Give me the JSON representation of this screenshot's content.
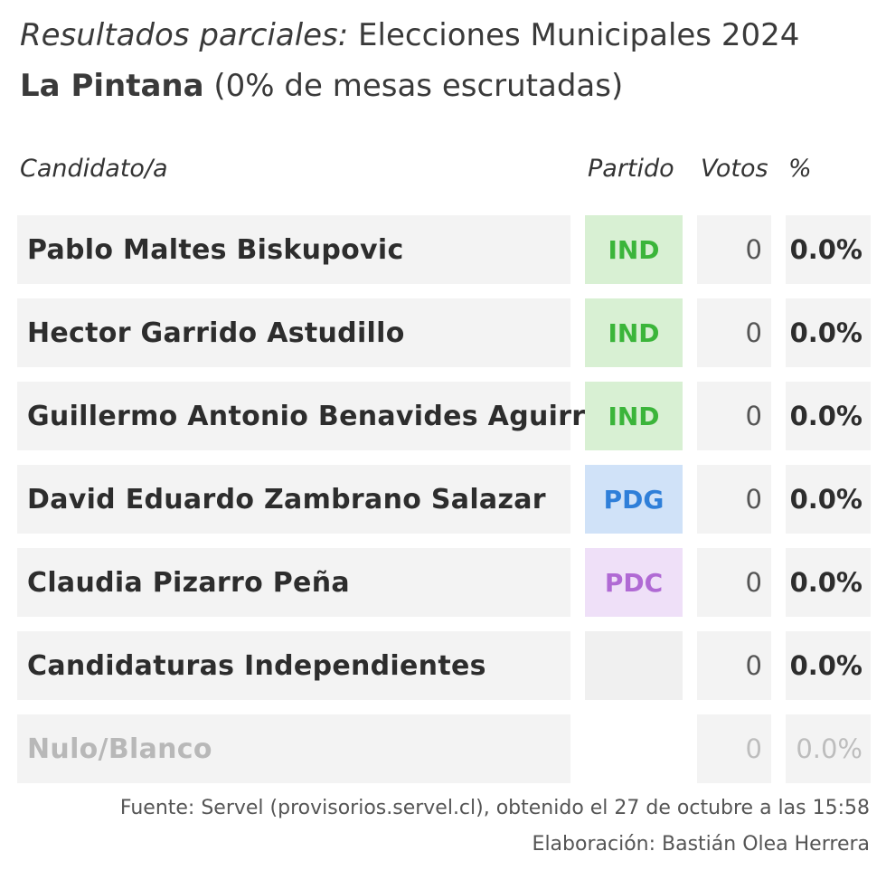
{
  "title": {
    "label_italic": "Resultados parciales:",
    "election": " Elecciones Municipales 2024",
    "commune": "La Pintana",
    "progress": " (0% de mesas escrutadas)"
  },
  "table": {
    "headers": {
      "candidate": "Candidato/a",
      "party": "Partido",
      "votes": "Votos",
      "percent": "%"
    },
    "rows": [
      {
        "name": "Pablo Maltes Biskupovic",
        "party": "IND",
        "votes": "0",
        "percent": "0.0%"
      },
      {
        "name": "Hector Garrido Astudillo",
        "party": "IND",
        "votes": "0",
        "percent": "0.0%"
      },
      {
        "name": "Guillermo Antonio Benavides Aguirre",
        "party": "IND",
        "votes": "0",
        "percent": "0.0%"
      },
      {
        "name": "David Eduardo Zambrano Salazar",
        "party": "PDG",
        "votes": "0",
        "percent": "0.0%"
      },
      {
        "name": "Claudia Pizarro Peña",
        "party": "PDC",
        "votes": "0",
        "percent": "0.0%"
      },
      {
        "name": "Candidaturas Independientes",
        "party": "",
        "votes": "0",
        "percent": "0.0%"
      },
      {
        "name": "Nulo/Blanco",
        "party": "",
        "votes": "0",
        "percent": "0.0%"
      }
    ]
  },
  "party_colors": {
    "IND": {
      "bg": "#d8f0d3",
      "text": "#3bb53a"
    },
    "PDG": {
      "bg": "#d0e2f8",
      "text": "#2f7fd9"
    },
    "PDC": {
      "bg": "#efe0f8",
      "text": "#b06ad4"
    }
  },
  "footer": {
    "source": "Fuente: Servel (provisorios.servel.cl), obtenido el 27 de octubre a las 15:58",
    "author": "Elaboración: Bastián Olea Herrera"
  }
}
